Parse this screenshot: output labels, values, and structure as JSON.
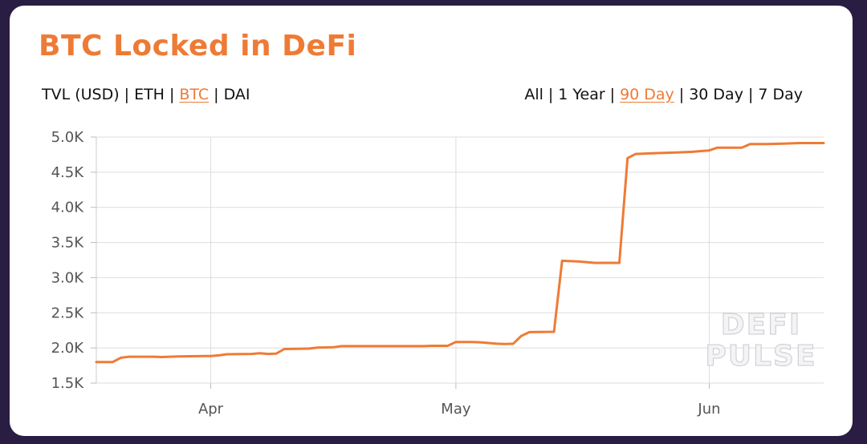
{
  "card": {
    "title": "BTC Locked in DeFi",
    "metric_options": [
      "TVL (USD)",
      "ETH",
      "BTC",
      "DAI"
    ],
    "metric_selected": "BTC",
    "range_options": [
      "All",
      "1 Year",
      "90 Day",
      "30 Day",
      "7 Day"
    ],
    "range_selected": "90 Day",
    "separator": "|",
    "watermark": [
      "DEFI",
      "PULSE"
    ],
    "accent_color": "#ee7b35",
    "background_color": "#2a1d44"
  },
  "chart_data": {
    "type": "line",
    "title": "",
    "xlabel": "",
    "ylabel": "",
    "x_ticks": [
      {
        "label": "Apr",
        "date": "2020-04-01"
      },
      {
        "label": "May",
        "date": "2020-05-01"
      },
      {
        "label": "Jun",
        "date": "2020-06-01"
      }
    ],
    "xlim": [
      "2020-03-18",
      "2020-06-15"
    ],
    "y_ticks": [
      {
        "value": 1500,
        "label": "1.5K"
      },
      {
        "value": 2000,
        "label": "2.0K"
      },
      {
        "value": 2500,
        "label": "2.5K"
      },
      {
        "value": 3000,
        "label": "3.0K"
      },
      {
        "value": 3500,
        "label": "3.5K"
      },
      {
        "value": 4000,
        "label": "4.0K"
      },
      {
        "value": 4500,
        "label": "4.5K"
      },
      {
        "value": 5000,
        "label": "5.0K"
      }
    ],
    "ylim": [
      1500,
      5000
    ],
    "grid": true,
    "line_color": "#ee7b35",
    "series": [
      {
        "points": [
          [
            "2020-03-18",
            1800
          ],
          [
            "2020-03-20",
            1800
          ],
          [
            "2020-03-21",
            1860
          ],
          [
            "2020-03-22",
            1875
          ],
          [
            "2020-03-25",
            1875
          ],
          [
            "2020-03-26",
            1870
          ],
          [
            "2020-03-28",
            1880
          ],
          [
            "2020-04-01",
            1885
          ],
          [
            "2020-04-02",
            1895
          ],
          [
            "2020-04-03",
            1910
          ],
          [
            "2020-04-06",
            1915
          ],
          [
            "2020-04-07",
            1925
          ],
          [
            "2020-04-08",
            1915
          ],
          [
            "2020-04-09",
            1920
          ],
          [
            "2020-04-10",
            1985
          ],
          [
            "2020-04-13",
            1990
          ],
          [
            "2020-04-14",
            2005
          ],
          [
            "2020-04-16",
            2010
          ],
          [
            "2020-04-17",
            2025
          ],
          [
            "2020-04-27",
            2025
          ],
          [
            "2020-04-28",
            2030
          ],
          [
            "2020-04-30",
            2030
          ],
          [
            "2020-05-01",
            2085
          ],
          [
            "2020-05-03",
            2085
          ],
          [
            "2020-05-04",
            2080
          ],
          [
            "2020-05-06",
            2060
          ],
          [
            "2020-05-07",
            2055
          ],
          [
            "2020-05-08",
            2060
          ],
          [
            "2020-05-09",
            2170
          ],
          [
            "2020-05-10",
            2225
          ],
          [
            "2020-05-13",
            2230
          ],
          [
            "2020-05-14",
            3240
          ],
          [
            "2020-05-16",
            3230
          ],
          [
            "2020-05-18",
            3210
          ],
          [
            "2020-05-21",
            3210
          ],
          [
            "2020-05-22",
            4700
          ],
          [
            "2020-05-23",
            4760
          ],
          [
            "2020-05-25",
            4770
          ],
          [
            "2020-05-28",
            4780
          ],
          [
            "2020-05-30",
            4790
          ],
          [
            "2020-05-31",
            4800
          ],
          [
            "2020-06-01",
            4810
          ],
          [
            "2020-06-02",
            4850
          ],
          [
            "2020-06-05",
            4850
          ],
          [
            "2020-06-06",
            4900
          ],
          [
            "2020-06-08",
            4900
          ],
          [
            "2020-06-10",
            4905
          ],
          [
            "2020-06-12",
            4915
          ],
          [
            "2020-06-15",
            4915
          ]
        ]
      }
    ]
  }
}
